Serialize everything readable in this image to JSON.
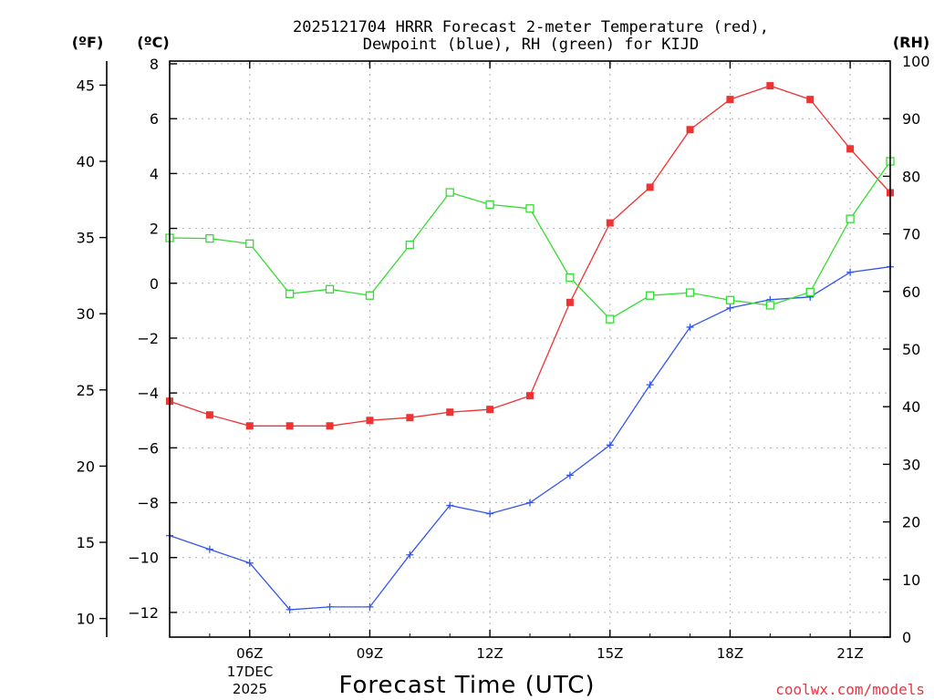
{
  "chart_data": {
    "type": "line",
    "title_line1": "2025121704 HRRR Forecast 2-meter Temperature (red),",
    "title_line2": "Dewpoint (blue), RH (green) for KIJD",
    "xlabel": "Forecast Time (UTC)",
    "unit_f": "(ºF)",
    "unit_c": "(ºC)",
    "unit_rh": "(RH)",
    "watermark": "coolwx.com/models",
    "date_line1": "17DEC",
    "date_line2": "2025",
    "x_range": [
      4,
      22
    ],
    "x_ticks": [
      {
        "hour": 6,
        "label": "06Z"
      },
      {
        "hour": 9,
        "label": "09Z"
      },
      {
        "hour": 12,
        "label": "12Z"
      },
      {
        "hour": 15,
        "label": "15Z"
      },
      {
        "hour": 18,
        "label": "18Z"
      },
      {
        "hour": 21,
        "label": "21Z"
      }
    ],
    "c_range": [
      -12.9,
      8.1
    ],
    "c_ticks": [
      "8",
      "6",
      "4",
      "2",
      "0",
      "−2",
      "−4",
      "−6",
      "−8",
      "−10",
      "−12"
    ],
    "c_tick_values": [
      8,
      6,
      4,
      2,
      0,
      -2,
      -4,
      -6,
      -8,
      -10,
      -12
    ],
    "f_ticks": [
      "45",
      "40",
      "35",
      "30",
      "25",
      "20",
      "15",
      "10"
    ],
    "f_tick_values": [
      45,
      40,
      35,
      30,
      25,
      20,
      15,
      10
    ],
    "rh_range": [
      0,
      100
    ],
    "rh_ticks": [
      "100",
      "90",
      "80",
      "70",
      "60",
      "50",
      "40",
      "30",
      "20",
      "10",
      "0"
    ],
    "rh_tick_values": [
      100,
      90,
      80,
      70,
      60,
      50,
      40,
      30,
      20,
      10,
      0
    ],
    "hours": [
      4,
      5,
      6,
      7,
      8,
      9,
      10,
      11,
      12,
      13,
      14,
      15,
      16,
      17,
      18,
      19,
      20,
      21,
      22
    ],
    "series": [
      {
        "name": "Temperature",
        "unit": "C",
        "color": "#ee3333",
        "marker": "square-filled",
        "values": [
          -4.3,
          -4.8,
          -5.2,
          -5.2,
          -5.2,
          -5.0,
          -4.9,
          -4.7,
          -4.6,
          -4.1,
          -0.7,
          2.2,
          3.5,
          5.6,
          6.7,
          7.2,
          6.7,
          4.9,
          3.3
        ]
      },
      {
        "name": "Dewpoint",
        "unit": "C",
        "color": "#3355ee",
        "marker": "plus",
        "values": [
          -9.2,
          -9.7,
          -10.2,
          -11.9,
          -11.8,
          -11.8,
          -9.9,
          -8.1,
          -8.4,
          -8.0,
          -7.0,
          -5.9,
          -3.7,
          -1.6,
          -0.9,
          -0.6,
          -0.5,
          0.4,
          0.6
        ]
      },
      {
        "name": "RH",
        "unit": "%",
        "color": "#33dd33",
        "marker": "square-open",
        "values": [
          69.3,
          69.2,
          68.3,
          59.6,
          60.4,
          59.3,
          68.1,
          77.2,
          75.1,
          74.4,
          62.4,
          55.2,
          59.3,
          59.8,
          58.5,
          57.6,
          59.9,
          72.6,
          82.6
        ]
      }
    ]
  }
}
